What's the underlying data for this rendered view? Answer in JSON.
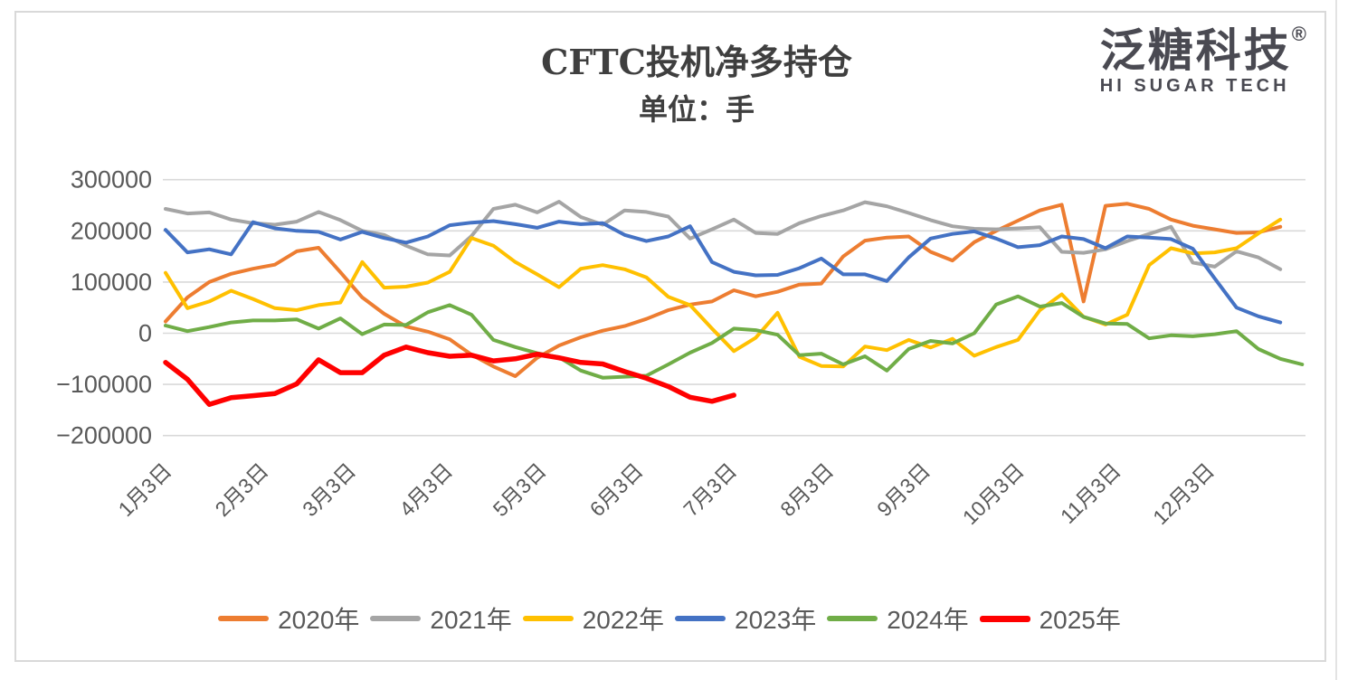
{
  "title": "CFTC投机净多持仓",
  "subtitle": "单位：手",
  "logo": {
    "cn": "泛糖科技",
    "reg": "®",
    "en": "HI SUGAR TECH"
  },
  "chart_data": {
    "type": "line",
    "title": "CFTC投机净多持仓",
    "subtitle": "单位：手",
    "x_labels": [
      "1月3日",
      "2月3日",
      "3月3日",
      "4月3日",
      "5月3日",
      "6月3日",
      "7月3日",
      "8月3日",
      "9月3日",
      "10月3日",
      "11月3日",
      "12月3日"
    ],
    "x_frequency": "weekly",
    "ylim": [
      -200000,
      300000
    ],
    "y_ticks": [
      300000,
      200000,
      100000,
      0,
      -100000,
      -200000
    ],
    "y_tick_labels": [
      "300000",
      "200000",
      "100000",
      "0",
      "−100000",
      "−200000"
    ],
    "grid": true,
    "grid_color": "#d9d9d9",
    "legend_position": "bottom",
    "series": [
      {
        "name": "2020年",
        "color": "#ED7D31",
        "stroke_width": 4,
        "values": [
          23000,
          70000,
          100000,
          116000,
          126000,
          134000,
          160000,
          167000,
          119000,
          70000,
          38000,
          13000,
          3000,
          -12000,
          -42000,
          -65000,
          -84000,
          -48000,
          -24000,
          -8000,
          5000,
          14000,
          28000,
          45000,
          56000,
          62000,
          84000,
          72000,
          81000,
          95000,
          97000,
          150000,
          181000,
          187000,
          189000,
          159000,
          142000,
          178000,
          200000,
          220000,
          240000,
          251000,
          62000,
          249000,
          253000,
          243000,
          222000,
          210000,
          203000,
          196000,
          197000,
          208000
        ]
      },
      {
        "name": "2021年",
        "color": "#A5A5A5",
        "stroke_width": 4,
        "values": [
          243000,
          234000,
          236000,
          222000,
          215000,
          212000,
          218000,
          237000,
          221000,
          200000,
          192000,
          171000,
          154000,
          152000,
          190000,
          243000,
          251000,
          236000,
          257000,
          227000,
          212000,
          240000,
          237000,
          228000,
          185000,
          203000,
          222000,
          196000,
          194000,
          215000,
          229000,
          240000,
          256000,
          248000,
          235000,
          221000,
          209000,
          204000,
          203000,
          205000,
          207000,
          159000,
          157000,
          164000,
          180000,
          194000,
          208000,
          138000,
          130000,
          160000,
          148000,
          125000
        ]
      },
      {
        "name": "2022年",
        "color": "#FFC000",
        "stroke_width": 4,
        "values": [
          118000,
          49000,
          62000,
          83000,
          67000,
          49000,
          45000,
          55000,
          60000,
          139000,
          89000,
          91000,
          99000,
          120000,
          186000,
          171000,
          139000,
          115000,
          90000,
          126000,
          133000,
          125000,
          109000,
          71000,
          55000,
          9000,
          -35000,
          -9000,
          40000,
          -46000,
          -64000,
          -65000,
          -26000,
          -33000,
          -13000,
          -28000,
          -11000,
          -44000,
          -27000,
          -13000,
          45000,
          76000,
          32000,
          17000,
          36000,
          133000,
          166000,
          156000,
          158000,
          166000,
          195000,
          222000
        ]
      },
      {
        "name": "2023年",
        "color": "#4472C4",
        "stroke_width": 4,
        "values": [
          202000,
          158000,
          164000,
          154000,
          217000,
          205000,
          200000,
          198000,
          183000,
          198000,
          186000,
          177000,
          189000,
          211000,
          216000,
          219000,
          213000,
          206000,
          218000,
          213000,
          215000,
          192000,
          180000,
          189000,
          209000,
          139000,
          120000,
          113000,
          114000,
          127000,
          146000,
          115000,
          115000,
          102000,
          148000,
          185000,
          194000,
          199000,
          185000,
          168000,
          172000,
          189000,
          184000,
          166000,
          189000,
          187000,
          184000,
          165000,
          107000,
          50000,
          33000,
          21000
        ]
      },
      {
        "name": "2024年",
        "color": "#70AD47",
        "stroke_width": 4,
        "values": [
          15000,
          4000,
          12000,
          21000,
          25000,
          25000,
          27000,
          9000,
          29000,
          -2000,
          17000,
          16000,
          41000,
          55000,
          36000,
          -13000,
          -27000,
          -39000,
          -47000,
          -73000,
          -87000,
          -85000,
          -83000,
          -61000,
          -38000,
          -19000,
          9000,
          6000,
          -3000,
          -43000,
          -40000,
          -61000,
          -45000,
          -73000,
          -31000,
          -15000,
          -20000,
          0,
          56000,
          72000,
          52000,
          59000,
          32000,
          19000,
          18000,
          -10000,
          -4000,
          -6000,
          -2000,
          4000,
          -31000,
          -50000,
          -61000
        ]
      },
      {
        "name": "2025年",
        "color": "#FF0000",
        "stroke_width": 5.5,
        "values": [
          -57000,
          -90000,
          -139000,
          -126000,
          -122000,
          -118000,
          -99000,
          -52000,
          -77000,
          -77000,
          -43000,
          -27000,
          -38000,
          -45000,
          -43000,
          -54000,
          -50000,
          -41000,
          -48000,
          -57000,
          -60000,
          -75000,
          -88000,
          -104000,
          -125000,
          -133000,
          -121000
        ]
      }
    ]
  }
}
